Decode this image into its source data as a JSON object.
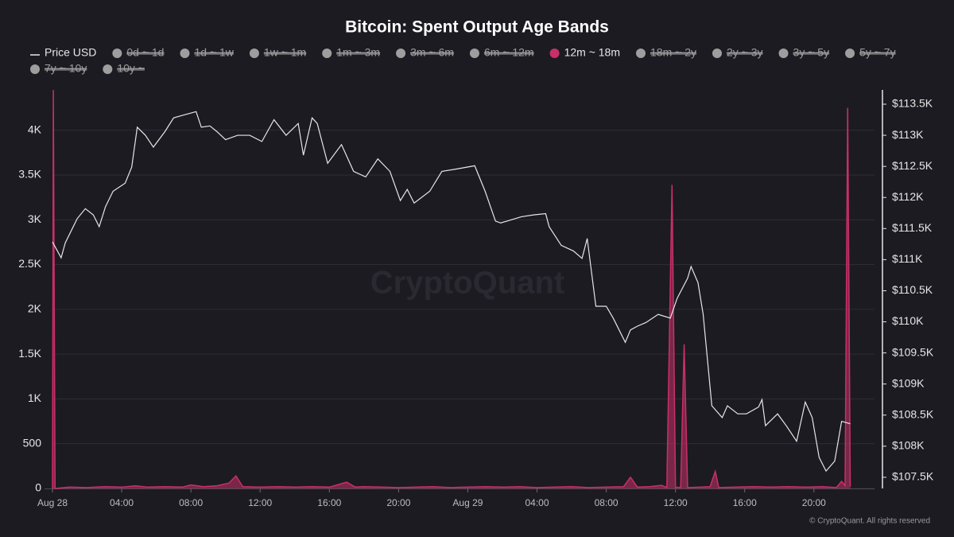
{
  "chart_data": {
    "type": "line",
    "title": "Bitcoin: Spent Output Age Bands",
    "watermark": "CryptoQuant",
    "footer": "© CryptoQuant. All rights reserved",
    "legend": [
      {
        "name": "Price USD",
        "color": "#e6e6e6",
        "active": true,
        "marker": "line"
      },
      {
        "name": "0d ~ 1d",
        "color": "#9e9e9e",
        "active": false,
        "marker": "dot"
      },
      {
        "name": "1d ~ 1w",
        "color": "#9e9e9e",
        "active": false,
        "marker": "dot"
      },
      {
        "name": "1w ~ 1m",
        "color": "#9e9e9e",
        "active": false,
        "marker": "dot"
      },
      {
        "name": "1m ~ 3m",
        "color": "#9e9e9e",
        "active": false,
        "marker": "dot"
      },
      {
        "name": "3m ~ 6m",
        "color": "#9e9e9e",
        "active": false,
        "marker": "dot"
      },
      {
        "name": "6m ~ 12m",
        "color": "#9e9e9e",
        "active": false,
        "marker": "dot"
      },
      {
        "name": "12m ~ 18m",
        "color": "#c92f6a",
        "active": true,
        "marker": "dot"
      },
      {
        "name": "18m ~ 2y",
        "color": "#9e9e9e",
        "active": false,
        "marker": "dot"
      },
      {
        "name": "2y ~ 3y",
        "color": "#9e9e9e",
        "active": false,
        "marker": "dot"
      },
      {
        "name": "3y ~ 5y",
        "color": "#9e9e9e",
        "active": false,
        "marker": "dot"
      },
      {
        "name": "5y ~ 7y",
        "color": "#9e9e9e",
        "active": false,
        "marker": "dot"
      },
      {
        "name": "7y ~ 10y",
        "color": "#9e9e9e",
        "active": false,
        "marker": "dot"
      },
      {
        "name": "10y ~",
        "color": "#9e9e9e",
        "active": false,
        "marker": "dot"
      }
    ],
    "xlim": [
      0,
      47.5
    ],
    "xticks": [
      {
        "value": 0,
        "label": "Aug 28"
      },
      {
        "value": 4,
        "label": "04:00"
      },
      {
        "value": 8,
        "label": "08:00"
      },
      {
        "value": 12,
        "label": "12:00"
      },
      {
        "value": 16,
        "label": "16:00"
      },
      {
        "value": 20,
        "label": "20:00"
      },
      {
        "value": 24,
        "label": "Aug 29"
      },
      {
        "value": 28,
        "label": "04:00"
      },
      {
        "value": 32,
        "label": "08:00"
      },
      {
        "value": 36,
        "label": "12:00"
      },
      {
        "value": 40,
        "label": "16:00"
      },
      {
        "value": 44,
        "label": "20:00"
      }
    ],
    "ylim": [
      0,
      4450
    ],
    "yticks": [
      0,
      500,
      {
        "value": 1000,
        "label": "1K"
      },
      {
        "value": 1500,
        "label": "1.5K"
      },
      {
        "value": 2000,
        "label": "2K"
      },
      {
        "value": 2500,
        "label": "2.5K"
      },
      {
        "value": 3000,
        "label": "3K"
      },
      {
        "value": 3500,
        "label": "3.5K"
      },
      {
        "value": 4000,
        "label": "4K"
      }
    ],
    "y2lim": [
      107320,
      113730
    ],
    "y2ticks": [
      {
        "value": 107500,
        "label": "$107.5K"
      },
      {
        "value": 108000,
        "label": "$108K"
      },
      {
        "value": 108500,
        "label": "$108.5K"
      },
      {
        "value": 109000,
        "label": "$109K"
      },
      {
        "value": 109500,
        "label": "$109.5K"
      },
      {
        "value": 110000,
        "label": "$110K"
      },
      {
        "value": 110500,
        "label": "$110.5K"
      },
      {
        "value": 111000,
        "label": "$111K"
      },
      {
        "value": 111500,
        "label": "$111.5K"
      },
      {
        "value": 112000,
        "label": "$112K"
      },
      {
        "value": 112500,
        "label": "$112.5K"
      },
      {
        "value": 113000,
        "label": "$113K"
      },
      {
        "value": 113500,
        "label": "$113.5K"
      }
    ],
    "grid": true,
    "series": [
      {
        "name": "12m ~ 18m",
        "color": "#c92f6a",
        "kind": "area",
        "axis": "y",
        "x": [
          0,
          0.05,
          0.15,
          1,
          2,
          3,
          4,
          4.8,
          5.5,
          6.5,
          7.5,
          8,
          8.7,
          9.5,
          10.2,
          10.6,
          11,
          12,
          13,
          14,
          15,
          16,
          17,
          17.5,
          18,
          19,
          20,
          21,
          22,
          23,
          24,
          25,
          26,
          27,
          28,
          29,
          30,
          31,
          32,
          33,
          33.4,
          33.8,
          34.5,
          35.2,
          35.5,
          35.8,
          36,
          36.3,
          36.5,
          36.7,
          37.5,
          38,
          38.3,
          38.5,
          39.5,
          40.5,
          41.5,
          42.5,
          43.5,
          44.5,
          45.3,
          45.6,
          45.8,
          45.95,
          46.1
        ],
        "values": [
          0,
          4450,
          0,
          15,
          10,
          20,
          15,
          30,
          15,
          20,
          15,
          40,
          20,
          30,
          60,
          140,
          20,
          15,
          20,
          15,
          20,
          15,
          70,
          15,
          20,
          15,
          10,
          15,
          20,
          10,
          15,
          20,
          15,
          20,
          10,
          15,
          20,
          10,
          15,
          20,
          125,
          15,
          20,
          35,
          10,
          3390,
          15,
          10,
          1610,
          10,
          15,
          20,
          190,
          10,
          15,
          20,
          15,
          20,
          15,
          20,
          10,
          80,
          30,
          4250,
          20
        ]
      },
      {
        "name": "Price USD",
        "color": "#e6e6e6",
        "kind": "line",
        "axis": "y2",
        "x": [
          0,
          0.5,
          0.74,
          1.2,
          1.43,
          1.9,
          2.36,
          2.7,
          3.06,
          3.5,
          4.2,
          4.58,
          4.9,
          5.37,
          5.83,
          6.5,
          7,
          7.5,
          8.3,
          8.6,
          9.1,
          9.5,
          10,
          10.7,
          11.4,
          12.1,
          12.8,
          13.5,
          14.2,
          14.5,
          15,
          15.3,
          15.9,
          16.7,
          17.4,
          18.1,
          18.8,
          19.5,
          20.1,
          20.5,
          20.9,
          21.8,
          22.5,
          23.4,
          24.4,
          25,
          25.6,
          25.9,
          27.1,
          27.8,
          28.5,
          28.7,
          29.4,
          30.1,
          30.6,
          30.9,
          31.4,
          32,
          32.4,
          33.1,
          33.4,
          33.8,
          34.3,
          35,
          35.7,
          36.1,
          36.7,
          36.9,
          37.3,
          37.6,
          38.1,
          38.7,
          39,
          39.6,
          40.1,
          40.8,
          41,
          41.2,
          41.9,
          42.4,
          43,
          43.5,
          43.9,
          44.3,
          44.7,
          45.2,
          45.6,
          46.1
        ],
        "values": [
          111285,
          111030,
          111270,
          111530,
          111660,
          111820,
          111720,
          111530,
          111850,
          112100,
          112230,
          112490,
          113130,
          113000,
          112810,
          113060,
          113280,
          113320,
          113380,
          113130,
          113150,
          113060,
          112930,
          113000,
          113000,
          112900,
          113250,
          113000,
          113190,
          112680,
          113280,
          113190,
          112550,
          112850,
          112420,
          112330,
          112620,
          112420,
          111950,
          112130,
          111910,
          112100,
          112420,
          112460,
          112510,
          112100,
          111620,
          111590,
          111690,
          111720,
          111740,
          111530,
          111230,
          111140,
          111020,
          111340,
          110250,
          110250,
          110060,
          109670,
          109870,
          109930,
          109990,
          110120,
          110060,
          110380,
          110700,
          110890,
          110630,
          110120,
          108650,
          108460,
          108650,
          108520,
          108520,
          108630,
          108750,
          108330,
          108520,
          108330,
          108080,
          108710,
          108460,
          107820,
          107600,
          107760,
          108400,
          108360
        ]
      }
    ]
  }
}
